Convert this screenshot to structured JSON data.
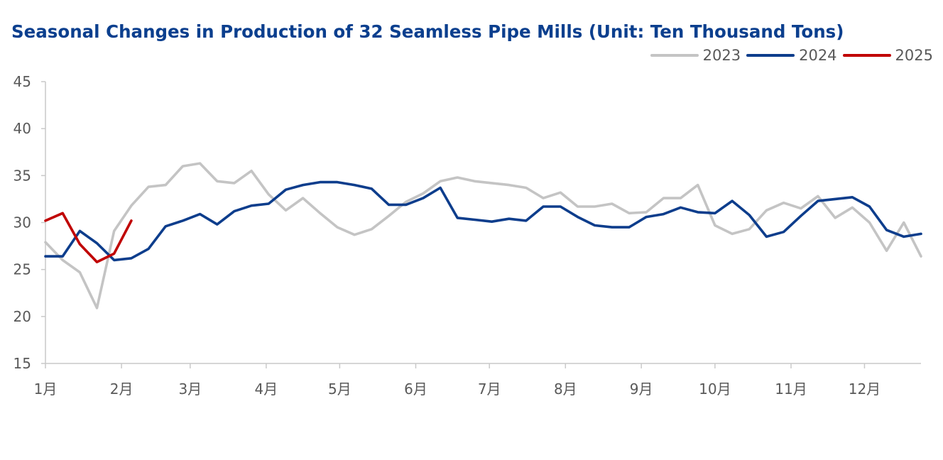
{
  "chart_data": {
    "type": "line",
    "title": "Seasonal Changes in Production of 32 Seamless Pipe Mills (Unit: Ten Thousand Tons)",
    "xlabel": "",
    "ylabel": "",
    "x_labels": [
      "1月",
      "2月",
      "3月",
      "4月",
      "5月",
      "6月",
      "7月",
      "8月",
      "9月",
      "10月",
      "11月",
      "12月"
    ],
    "ylim": [
      15,
      45
    ],
    "yticks": [
      15,
      20,
      25,
      30,
      35,
      40,
      45
    ],
    "grid": false,
    "legend_position": "top-right",
    "series": [
      {
        "name": "2023",
        "color": "#c4c4c4",
        "values": [
          27.9,
          26.0,
          24.7,
          20.9,
          29.1,
          31.8,
          33.8,
          34.0,
          36.0,
          36.3,
          34.4,
          34.2,
          35.5,
          33.0,
          31.3,
          32.6,
          31.0,
          29.5,
          28.7,
          29.3,
          30.7,
          32.2,
          33.1,
          34.4,
          34.8,
          34.4,
          34.2,
          34.0,
          33.7,
          32.6,
          33.2,
          31.7,
          31.7,
          32.0,
          31.0,
          31.1,
          32.6,
          32.6,
          34.0,
          29.7,
          28.8,
          29.3,
          31.3,
          32.1,
          31.5,
          32.8,
          30.5,
          31.6,
          30.0,
          27.0,
          30.0,
          26.4
        ]
      },
      {
        "name": "2024",
        "color": "#0d3d8c",
        "values": [
          26.4,
          26.4,
          29.1,
          27.8,
          26.0,
          26.2,
          27.2,
          29.6,
          30.2,
          30.9,
          29.8,
          31.2,
          31.8,
          32.0,
          33.5,
          34.0,
          34.3,
          34.3,
          34.0,
          33.6,
          31.9,
          31.9,
          32.6,
          33.7,
          30.5,
          30.3,
          30.1,
          30.4,
          30.2,
          31.7,
          31.7,
          30.6,
          29.7,
          29.5,
          29.5,
          30.6,
          30.9,
          31.6,
          31.1,
          31.0,
          32.3,
          30.8,
          28.5,
          29.0,
          30.7,
          32.3,
          32.5,
          32.7,
          31.7,
          29.2,
          28.5,
          28.8
        ]
      },
      {
        "name": "2025",
        "color": "#c00000",
        "values": [
          30.2,
          31.0,
          27.7,
          25.8,
          26.7,
          30.2
        ]
      }
    ]
  }
}
